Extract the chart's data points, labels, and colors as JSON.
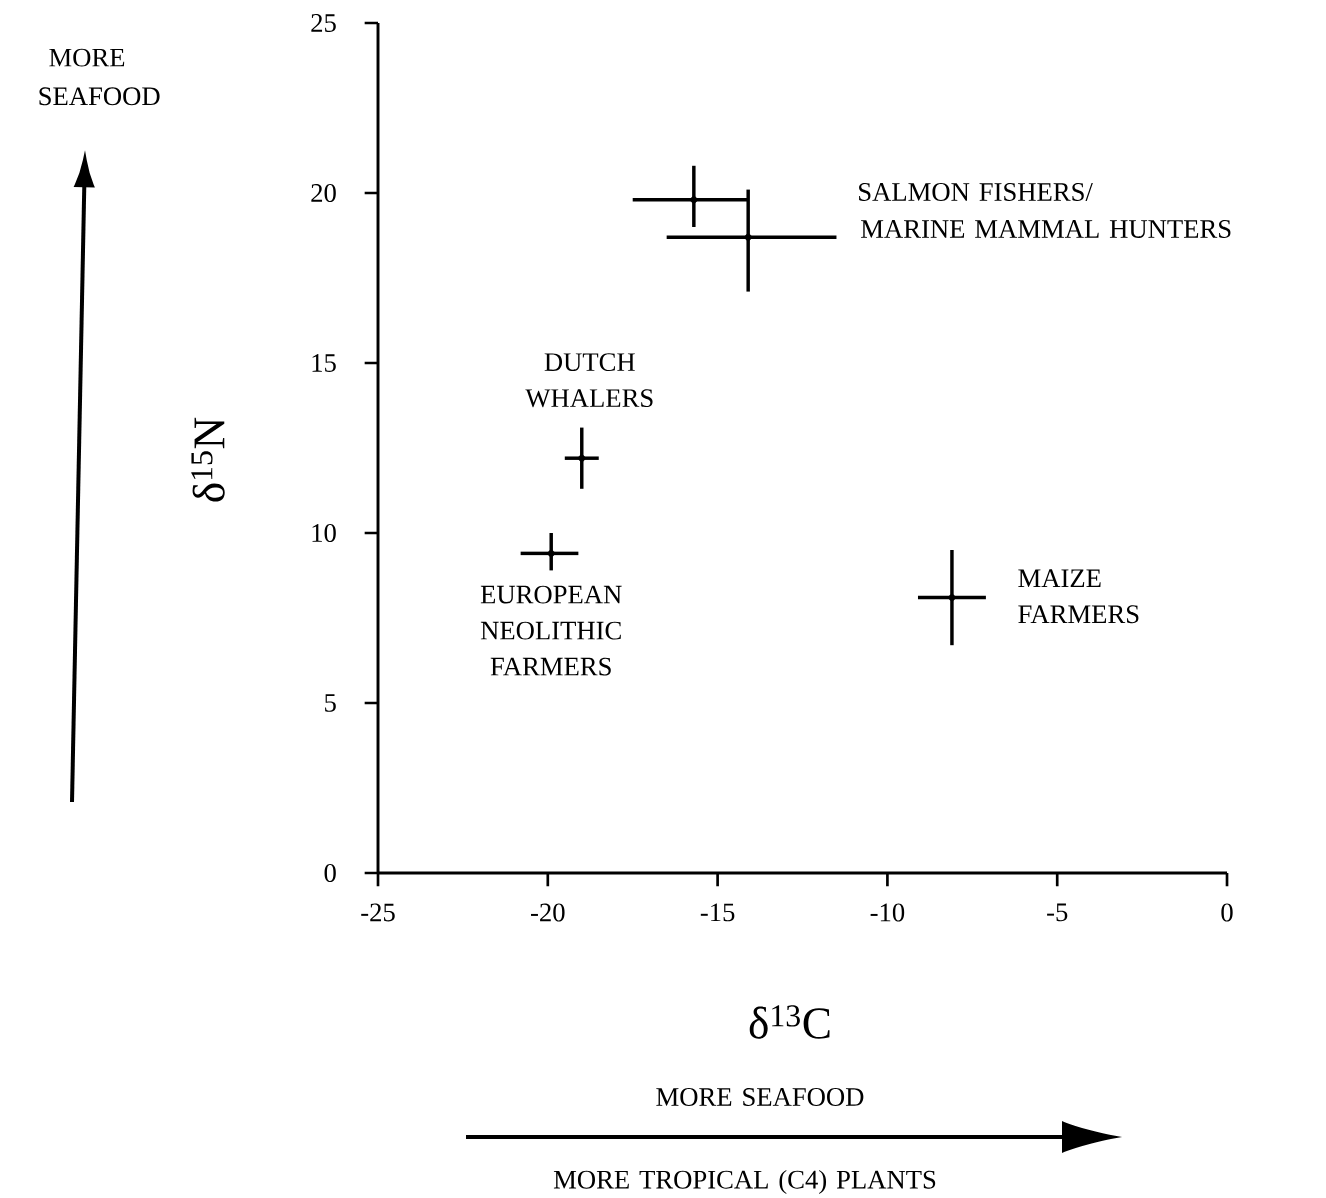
{
  "chart_data": {
    "type": "scatter",
    "xlabel": "δ$^{13}$C",
    "ylabel": "δ$^{15}$N",
    "x": [
      -15.7,
      -14.1,
      -19.0,
      -19.9,
      -8.1
    ],
    "values": [
      19.8,
      18.7,
      12.2,
      9.4,
      8.1
    ],
    "errors": [
      [
        19.0,
        20.8
      ],
      [
        17.1,
        20.1
      ],
      [
        11.3,
        13.1
      ],
      [
        8.9,
        10.0
      ],
      [
        6.7,
        9.5
      ]
    ],
    "xerrors": [
      [
        -17.5,
        -14.1
      ],
      [
        -16.5,
        -11.5
      ],
      [
        -19.5,
        -18.5
      ],
      [
        -20.8,
        -19.1
      ],
      [
        -9.1,
        -7.1
      ]
    ],
    "color": "#000000",
    "xlim": [
      -25,
      0
    ],
    "ylim": [
      0,
      25
    ],
    "xticks": [
      -25,
      -20,
      -15,
      -10,
      -5,
      0
    ],
    "yticks": [
      0,
      5,
      10,
      15,
      20,
      25
    ],
    "annotations": [
      "SALMON FISHERS/",
      "MARINE MAMMAL HUNTERS",
      {
        "text": "DUTCH WHALERS",
        "x": -19.0,
        "y": 12.2
      },
      {
        "text": "EUROPEAN NEOLITHIC FARMERS",
        "x": -19.9,
        "y": 9.4
      },
      {
        "text": "MAIZE FARMERS",
        "x": -8.1,
        "y": 8.1
      },
      "MORE SEAFOOD",
      "MORE SEAFOOD",
      "MORE TROPICAL (C4) PLANTS"
    ]
  }
}
